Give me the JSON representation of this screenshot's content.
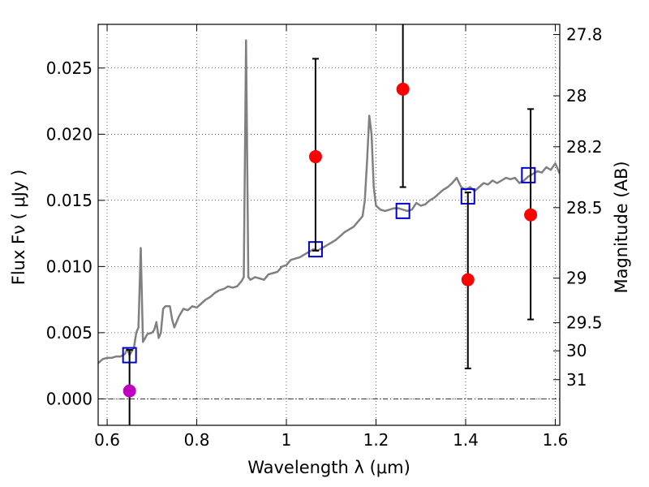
{
  "chart_data": {
    "type": "scatter",
    "xlabel": "Wavelength  λ (μm)",
    "ylabel": "Flux  Fν  ( μJy )",
    "ylabel_right": "Magnitude (AB)",
    "xlim": [
      0.58,
      1.61
    ],
    "ylim": [
      -0.002,
      0.0283
    ],
    "grid": true,
    "x_ticks": [
      {
        "value": 0.6,
        "label": "0.6"
      },
      {
        "value": 0.8,
        "label": "0.8"
      },
      {
        "value": 1.0,
        "label": "1"
      },
      {
        "value": 1.2,
        "label": "1.2"
      },
      {
        "value": 1.4,
        "label": "1.4"
      },
      {
        "value": 1.6,
        "label": "1.6"
      }
    ],
    "y_ticks": [
      {
        "value": 0.0,
        "label": "0.000"
      },
      {
        "value": 0.005,
        "label": "0.005"
      },
      {
        "value": 0.01,
        "label": "0.010"
      },
      {
        "value": 0.015,
        "label": "0.015"
      },
      {
        "value": 0.02,
        "label": "0.020"
      },
      {
        "value": 0.025,
        "label": "0.025"
      }
    ],
    "right_ticks": [
      {
        "label": "27.8",
        "flux": 0.02753
      },
      {
        "label": "28",
        "flux": 0.0229
      },
      {
        "label": "28.2",
        "flux": 0.01905
      },
      {
        "label": "28.5",
        "flux": 0.01445
      },
      {
        "label": "29",
        "flux": 0.00912
      },
      {
        "label": "29.5",
        "flux": 0.00575
      },
      {
        "label": "30",
        "flux": 0.00363
      },
      {
        "label": "31",
        "flux": 0.00145
      }
    ],
    "series": [
      {
        "kind": "line",
        "color": "#808080",
        "points": [
          [
            0.58,
            0.0027
          ],
          [
            0.59,
            0.003
          ],
          [
            0.6,
            0.0031
          ],
          [
            0.61,
            0.0031
          ],
          [
            0.62,
            0.0032
          ],
          [
            0.63,
            0.0032
          ],
          [
            0.64,
            0.0034
          ],
          [
            0.645,
            0.0038
          ],
          [
            0.65,
            0.0033
          ],
          [
            0.66,
            0.0039
          ],
          [
            0.665,
            0.005
          ],
          [
            0.67,
            0.0054
          ],
          [
            0.675,
            0.0114
          ],
          [
            0.68,
            0.0043
          ],
          [
            0.69,
            0.0049
          ],
          [
            0.7,
            0.005
          ],
          [
            0.705,
            0.0052
          ],
          [
            0.71,
            0.0058
          ],
          [
            0.715,
            0.0046
          ],
          [
            0.72,
            0.005
          ],
          [
            0.725,
            0.0068
          ],
          [
            0.73,
            0.007
          ],
          [
            0.74,
            0.007
          ],
          [
            0.745,
            0.006
          ],
          [
            0.75,
            0.0054
          ],
          [
            0.76,
            0.0062
          ],
          [
            0.77,
            0.0068
          ],
          [
            0.78,
            0.0067
          ],
          [
            0.79,
            0.007
          ],
          [
            0.8,
            0.0069
          ],
          [
            0.81,
            0.0072
          ],
          [
            0.82,
            0.0075
          ],
          [
            0.83,
            0.0077
          ],
          [
            0.84,
            0.008
          ],
          [
            0.85,
            0.0082
          ],
          [
            0.86,
            0.0083
          ],
          [
            0.87,
            0.0085
          ],
          [
            0.88,
            0.0084
          ],
          [
            0.89,
            0.0085
          ],
          [
            0.9,
            0.0089
          ],
          [
            0.905,
            0.0092
          ],
          [
            0.91,
            0.0271
          ],
          [
            0.915,
            0.0092
          ],
          [
            0.92,
            0.009
          ],
          [
            0.93,
            0.0092
          ],
          [
            0.94,
            0.0091
          ],
          [
            0.95,
            0.009
          ],
          [
            0.96,
            0.0094
          ],
          [
            0.97,
            0.0095
          ],
          [
            0.98,
            0.0096
          ],
          [
            0.99,
            0.01
          ],
          [
            1.0,
            0.0101
          ],
          [
            1.01,
            0.0105
          ],
          [
            1.02,
            0.0106
          ],
          [
            1.03,
            0.0107
          ],
          [
            1.04,
            0.0109
          ],
          [
            1.05,
            0.0111
          ],
          [
            1.06,
            0.0113
          ],
          [
            1.07,
            0.0112
          ],
          [
            1.08,
            0.0114
          ],
          [
            1.09,
            0.0116
          ],
          [
            1.1,
            0.0118
          ],
          [
            1.11,
            0.012
          ],
          [
            1.12,
            0.0123
          ],
          [
            1.13,
            0.0126
          ],
          [
            1.14,
            0.0128
          ],
          [
            1.15,
            0.013
          ],
          [
            1.16,
            0.0134
          ],
          [
            1.17,
            0.0138
          ],
          [
            1.175,
            0.015
          ],
          [
            1.18,
            0.018
          ],
          [
            1.185,
            0.0214
          ],
          [
            1.19,
            0.02
          ],
          [
            1.195,
            0.016
          ],
          [
            1.2,
            0.0146
          ],
          [
            1.21,
            0.0143
          ],
          [
            1.22,
            0.0142
          ],
          [
            1.23,
            0.0143
          ],
          [
            1.24,
            0.0144
          ],
          [
            1.25,
            0.0144
          ],
          [
            1.26,
            0.0143
          ],
          [
            1.27,
            0.0142
          ],
          [
            1.28,
            0.0143
          ],
          [
            1.29,
            0.0148
          ],
          [
            1.3,
            0.0146
          ],
          [
            1.31,
            0.0147
          ],
          [
            1.32,
            0.015
          ],
          [
            1.33,
            0.0152
          ],
          [
            1.34,
            0.0155
          ],
          [
            1.35,
            0.0158
          ],
          [
            1.36,
            0.016
          ],
          [
            1.37,
            0.0163
          ],
          [
            1.38,
            0.0167
          ],
          [
            1.39,
            0.016
          ],
          [
            1.4,
            0.0158
          ],
          [
            1.41,
            0.016
          ],
          [
            1.42,
            0.0157
          ],
          [
            1.43,
            0.016
          ],
          [
            1.44,
            0.0163
          ],
          [
            1.45,
            0.0162
          ],
          [
            1.46,
            0.0165
          ],
          [
            1.47,
            0.0163
          ],
          [
            1.48,
            0.0165
          ],
          [
            1.49,
            0.0167
          ],
          [
            1.5,
            0.0166
          ],
          [
            1.51,
            0.0167
          ],
          [
            1.52,
            0.0163
          ],
          [
            1.53,
            0.0165
          ],
          [
            1.54,
            0.0168
          ],
          [
            1.55,
            0.017
          ],
          [
            1.56,
            0.0172
          ],
          [
            1.57,
            0.0171
          ],
          [
            1.58,
            0.0175
          ],
          [
            1.59,
            0.0173
          ],
          [
            1.6,
            0.0178
          ],
          [
            1.61,
            0.017
          ]
        ]
      },
      {
        "kind": "markers",
        "marker": "open-square",
        "color": "#0000cc",
        "points": [
          [
            0.65,
            0.0033
          ],
          [
            1.065,
            0.0113
          ],
          [
            1.26,
            0.0142
          ],
          [
            1.405,
            0.0153
          ],
          [
            1.54,
            0.0169
          ]
        ]
      },
      {
        "kind": "markers",
        "marker": "filled-circle",
        "color": "#ff0000",
        "points": [
          {
            "x": 1.065,
            "y": 0.0183,
            "ylo": 0.0112,
            "yhi": 0.0257
          },
          {
            "x": 1.26,
            "y": 0.0234,
            "ylo": 0.016,
            "yhi": 0.029
          },
          {
            "x": 1.405,
            "y": 0.009,
            "ylo": 0.0023,
            "yhi": 0.0156
          },
          {
            "x": 1.545,
            "y": 0.0139,
            "ylo": 0.006,
            "yhi": 0.0219
          }
        ]
      },
      {
        "kind": "markers",
        "marker": "filled-circle",
        "color": "#bf00bf",
        "points": [
          {
            "x": 0.65,
            "y": 0.0006,
            "ylo": -0.003,
            "yhi": 0.0037
          }
        ]
      }
    ]
  }
}
